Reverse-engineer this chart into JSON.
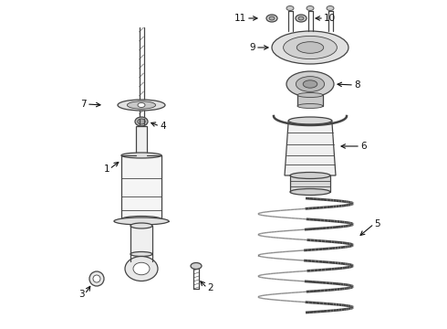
{
  "bg_color": "#ffffff",
  "line_color": "#444444",
  "label_color": "#111111",
  "label_fontsize": 7.5,
  "fig_w": 4.9,
  "fig_h": 3.6,
  "dpi": 100
}
